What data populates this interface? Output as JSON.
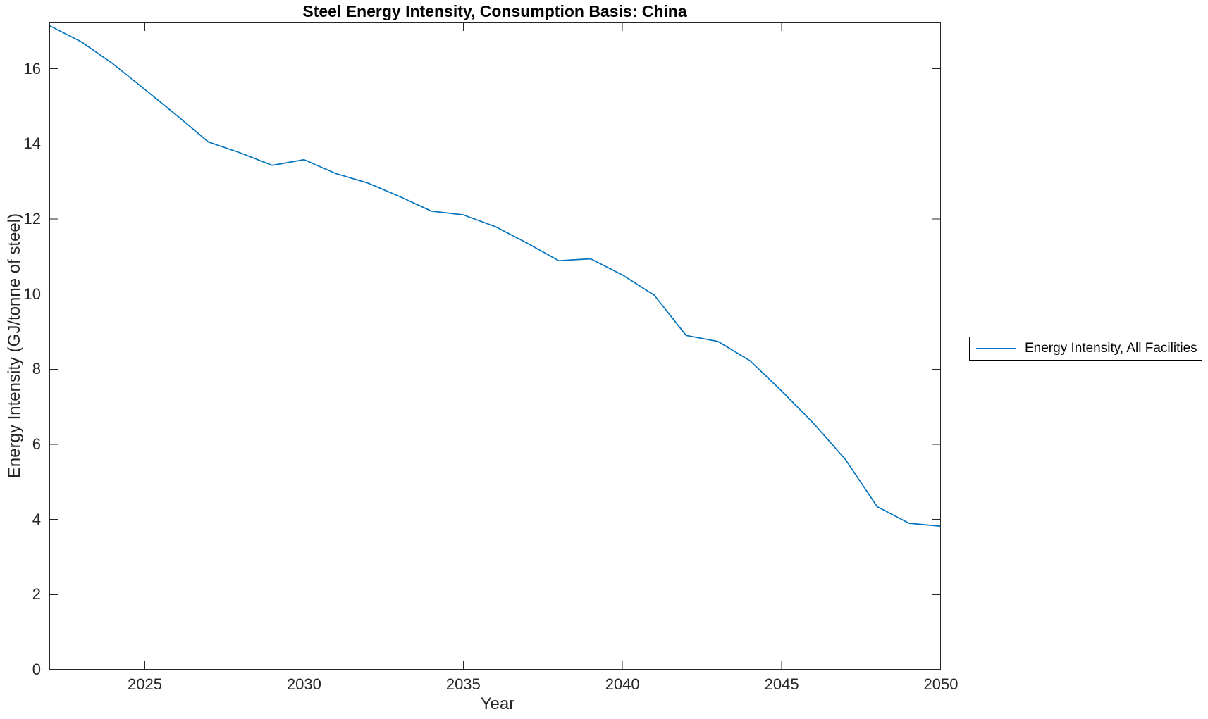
{
  "chart_data": {
    "type": "line",
    "title": "Steel Energy Intensity, Consumption Basis: China",
    "xlabel": "Year",
    "ylabel": "Energy Intensity (GJ/tonne of steel)",
    "xlim": [
      2022,
      2050
    ],
    "ylim": [
      0,
      17.25
    ],
    "xticks": [
      2025,
      2030,
      2035,
      2040,
      2045,
      2050
    ],
    "yticks": [
      0,
      2,
      4,
      6,
      8,
      10,
      12,
      14,
      16
    ],
    "grid": false,
    "box": true,
    "tick_direction": "in",
    "line_color": "#0072BD",
    "axis_color": "#262626",
    "background_color": "#ffffff",
    "legend": {
      "position": "outside-right",
      "entries": [
        {
          "label": "Energy Intensity, All Facilities",
          "color": "#0072BD"
        }
      ]
    },
    "series": [
      {
        "name": "Energy Intensity, All Facilities",
        "x": [
          2022,
          2023,
          2024,
          2025,
          2026,
          2027,
          2028,
          2029,
          2030,
          2031,
          2032,
          2033,
          2034,
          2035,
          2036,
          2037,
          2038,
          2039,
          2040,
          2041,
          2042,
          2043,
          2044,
          2045,
          2046,
          2047,
          2048,
          2049,
          2050
        ],
        "values": [
          17.15,
          16.72,
          16.13,
          15.45,
          14.76,
          14.05,
          13.76,
          13.43,
          13.58,
          13.21,
          12.96,
          12.6,
          12.21,
          12.11,
          11.8,
          11.36,
          10.89,
          10.94,
          10.51,
          9.97,
          8.9,
          8.74,
          8.23,
          7.42,
          6.56,
          5.6,
          4.34,
          3.9,
          3.82
        ]
      }
    ]
  }
}
